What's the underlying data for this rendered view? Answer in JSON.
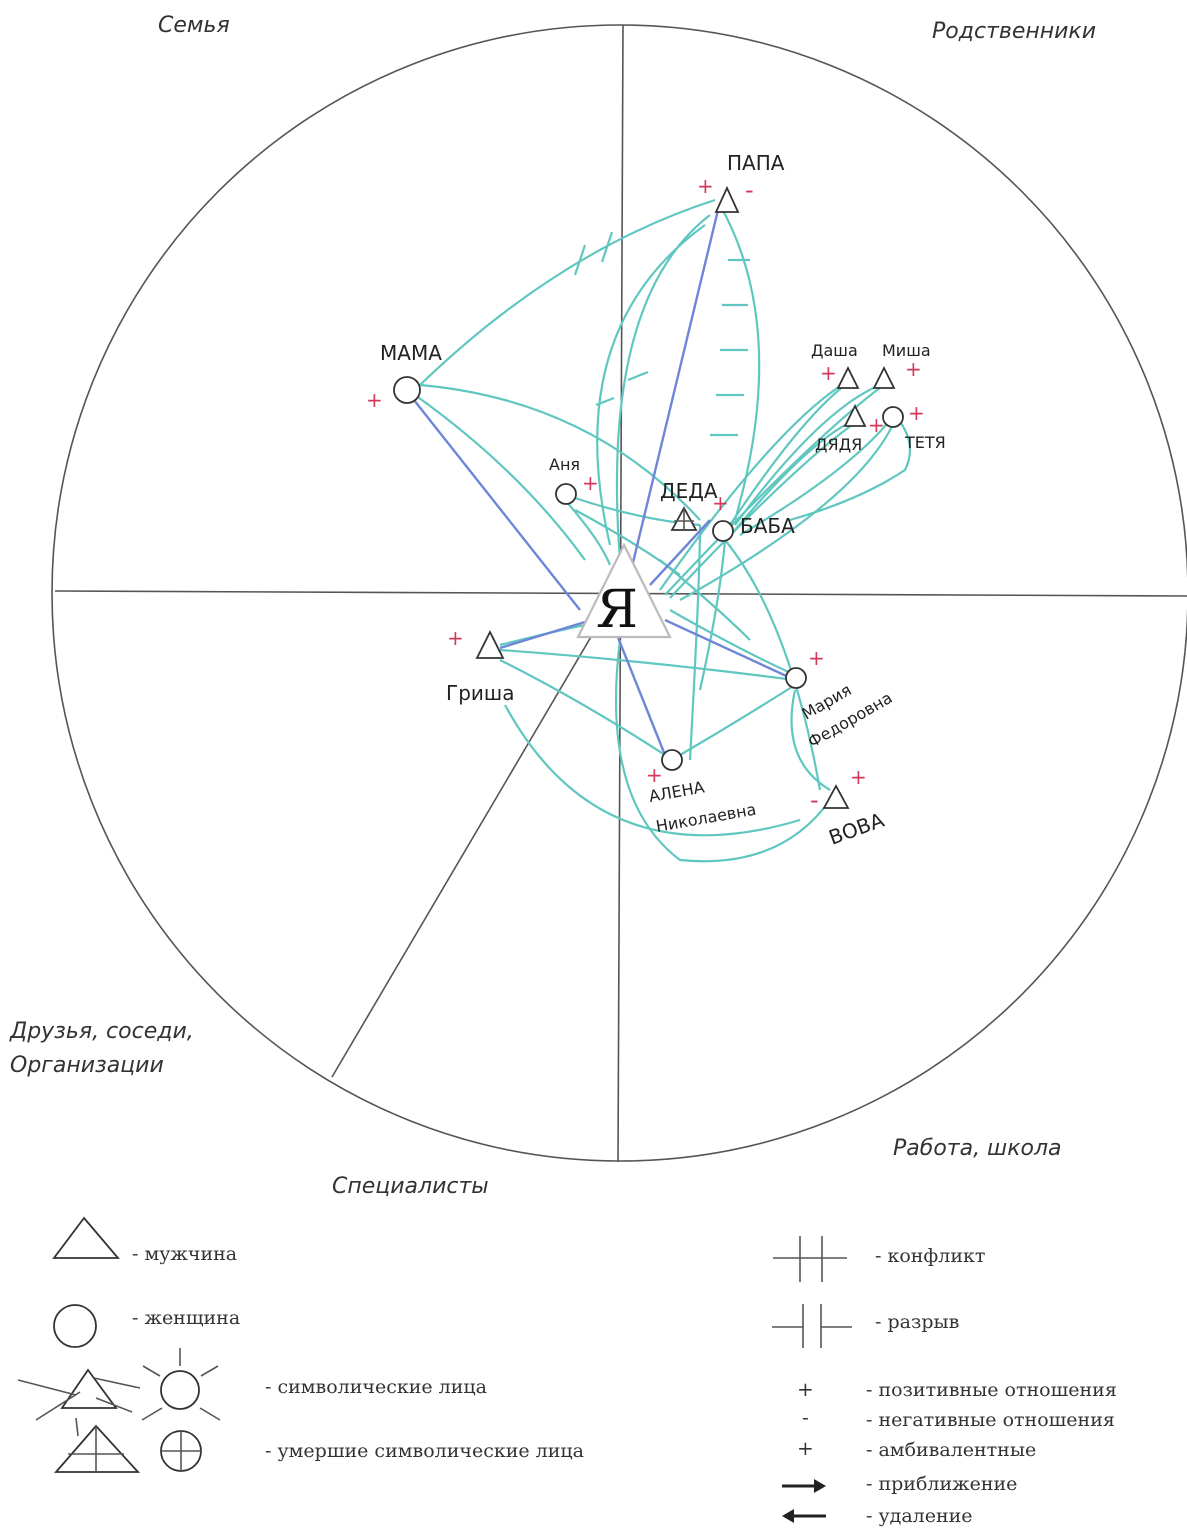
{
  "sectors": {
    "family": "Семья",
    "relatives": "Родственники",
    "friends_line1": "Друзья, соседи,",
    "friends_line2": "Организации",
    "specialists": "Специалисты",
    "work_school": "Работа, школа"
  },
  "ego": "Я",
  "persons": {
    "papa": "ПАПА",
    "mama": "МАМА",
    "anya": "Аня",
    "deda": "ДЕДА",
    "baba": "БАБА",
    "dasha": "Даша",
    "misha": "Миша",
    "dyadya": "ДЯДЯ",
    "tetya": "ТЕТЯ",
    "grisha": "Гриша",
    "maria_line1": "Мария",
    "maria_line2": "Федоровна",
    "alena_line1": "АЛЕНА",
    "alena_line2": "Николаевна",
    "vova": "ВОВА"
  },
  "marks": {
    "plus": "+",
    "minus": "-"
  },
  "legend": {
    "male": "- мужчина",
    "female": "- женщина",
    "symbolic": "- символические лица",
    "dead_symbolic": "- умершие символические лица",
    "conflict": "- конфликт",
    "rupture": "- разрыв",
    "positive_sym": "+",
    "positive": "- позитивные отношения",
    "negative_sym": "-",
    "negative": "- негативные отношения",
    "ambivalent_sym": "+",
    "ambivalent": "- амбивалентные",
    "approach": "- приближение",
    "distance": "- удаление"
  },
  "colors": {
    "relation": "#5fc7bf",
    "relation_strong": "#6f86d8",
    "mark": "#d23a5a"
  }
}
